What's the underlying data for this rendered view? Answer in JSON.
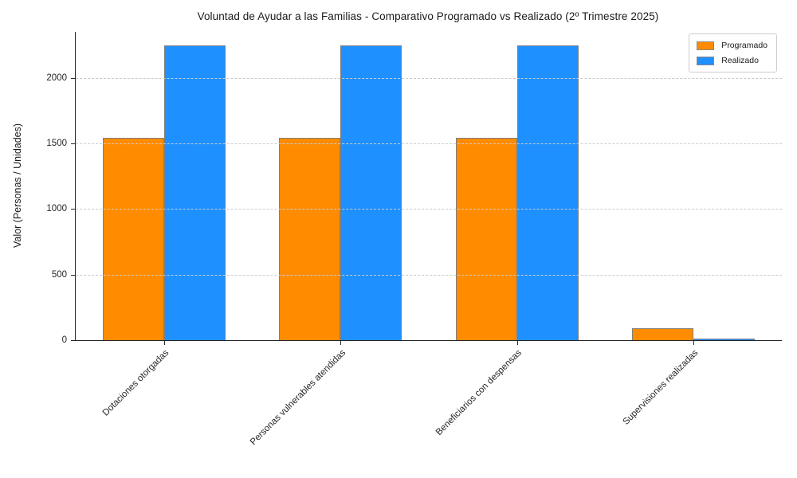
{
  "title": "Voluntad de Ayudar a las Familias - Comparativo Programado vs Realizado (2º Trimestre 2025)",
  "chart_data": {
    "type": "bar",
    "title": "Voluntad de Ayudar a las Familias - Comparativo Programado vs Realizado (2º Trimestre 2025)",
    "xlabel": "",
    "ylabel": "Valor (Personas / Unidades)",
    "categories": [
      "Dotaciones otorgadas",
      "Personas vulnerables atendidas",
      "Beneficiarios con despensas",
      "Supervisiones realizadas"
    ],
    "series": [
      {
        "name": "Programado",
        "color": "#FF8C00",
        "values": [
          1545,
          1545,
          1545,
          90
        ]
      },
      {
        "name": "Realizado",
        "color": "#1E90FF",
        "values": [
          2245,
          2245,
          2245,
          15
        ]
      }
    ],
    "yticks": [
      0,
      500,
      1000,
      1500,
      2000
    ],
    "ylim": [
      0,
      2350
    ],
    "grid": "horizontal-dashed-over-bars",
    "grid_color": "#cbcbcb",
    "bar_edge_color": "#7f7f7f",
    "legend_position": "upper-right",
    "xtick_rotation": 45
  },
  "legend": {
    "items": [
      {
        "label": "Programado",
        "color": "#FF8C00"
      },
      {
        "label": "Realizado",
        "color": "#1E90FF"
      }
    ]
  }
}
